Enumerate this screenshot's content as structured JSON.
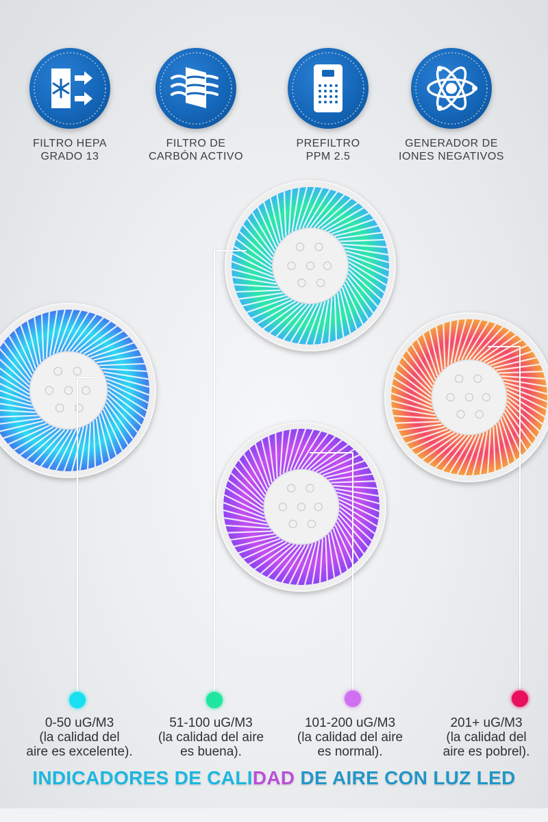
{
  "features": [
    {
      "icon": "snowflake-filter-icon",
      "label": "FILTRO HEPA\nGRADO 13"
    },
    {
      "icon": "carbon-filter-icon",
      "label": "FILTRO DE\nCARBÓN ACTIVO"
    },
    {
      "icon": "purifier-device-icon",
      "label": "PREFILTRO\nPPM 2.5"
    },
    {
      "icon": "atom-icon",
      "label": "GENERADOR DE\nIONES NEGATIVOS"
    }
  ],
  "indicators": [
    {
      "color": "#19e0f0",
      "range": "0-50 uG/M3",
      "desc": "(la calidad del\naire es excelente)."
    },
    {
      "color": "#1fe6a0",
      "range": "51-100 uG/M3",
      "desc": "(la calidad del aire\nes buena)."
    },
    {
      "color": "#d070f0",
      "range": "101-200 uG/M3",
      "desc": "(la calidad del aire\nes normal)."
    },
    {
      "color": "#e8105a",
      "range": "201+ uG/M3",
      "desc": "(la calidad del\naire es pobrel)."
    }
  ],
  "footer": {
    "part1": "INDICADORES DE CALI",
    "part2": "DAD",
    "part3": " DE AIRE CON LUZ LED"
  },
  "fan_colors": {
    "cyan": [
      "#2fd8f2",
      "#3f7cf0"
    ],
    "green": [
      "#2ee8a8",
      "#38b8f0"
    ],
    "purple": [
      "#c44ff0",
      "#8c45f0"
    ],
    "red": [
      "#f24a6a",
      "#f5a040"
    ]
  }
}
